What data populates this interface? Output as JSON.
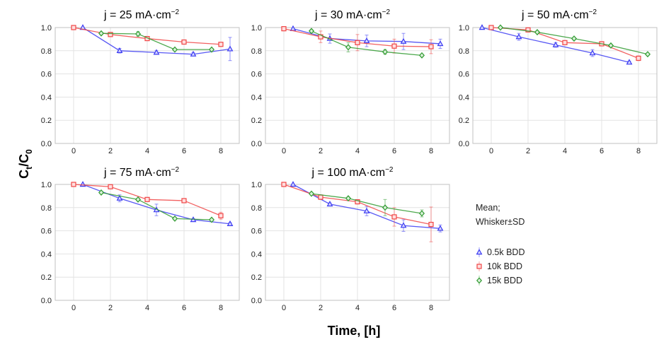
{
  "figure": {
    "ylabel": {
      "main": "C",
      "sub1": "t",
      "slash": "/C",
      "sub2": "0"
    },
    "xlabel": "Time, [h]",
    "legend": {
      "caption_line1": "Mean;",
      "caption_line2": "Whisker±SD",
      "entries": [
        {
          "label": "0.5k BDD",
          "color": "#3b3bf2",
          "marker": "triangle"
        },
        {
          "label": "10k BDD",
          "color": "#f04545",
          "marker": "square"
        },
        {
          "label": "15k BDD",
          "color": "#2f9a2f",
          "marker": "diamond"
        }
      ]
    }
  },
  "chart_data": [
    {
      "type": "line",
      "title": {
        "prefix": "j = 25 mA·cm",
        "sup": "−2"
      },
      "xticks": [
        "0",
        "2",
        "4",
        "6",
        "8"
      ],
      "yticks": [
        "0.0",
        "0.2",
        "0.4",
        "0.6",
        "0.8",
        "1.0"
      ],
      "xlim": [
        -1,
        9
      ],
      "ylim": [
        0,
        1
      ],
      "grid": true,
      "series": [
        {
          "name": "0.5k BDD",
          "color": "#3b3bf2",
          "marker": "triangle",
          "x": [
            0.5,
            2.5,
            4.5,
            6.5,
            8.5
          ],
          "y": [
            1.0,
            0.8,
            0.785,
            0.77,
            0.815
          ],
          "sd": [
            0.0,
            0.02,
            0.015,
            0.015,
            0.1
          ]
        },
        {
          "name": "10k BDD",
          "color": "#f04545",
          "marker": "square",
          "x": [
            0,
            2,
            4,
            6,
            8
          ],
          "y": [
            1.0,
            0.94,
            0.905,
            0.875,
            0.855
          ],
          "sd": [
            0.0,
            0.01,
            0.01,
            0.01,
            0.015
          ]
        },
        {
          "name": "15k BDD",
          "color": "#2f9a2f",
          "marker": "diamond",
          "x": [
            1.5,
            3.5,
            5.5,
            7.5
          ],
          "y": [
            0.95,
            0.945,
            0.81,
            0.81
          ],
          "sd": [
            0.01,
            0.02,
            0.01,
            0.01
          ]
        }
      ]
    },
    {
      "type": "line",
      "title": {
        "prefix": "j = 30 mA·cm",
        "sup": "−2"
      },
      "xticks": [
        "0",
        "2",
        "4",
        "6",
        "8"
      ],
      "yticks": [
        "0.0",
        "0.2",
        "0.4",
        "0.6",
        "0.8",
        "1.0"
      ],
      "xlim": [
        -1,
        9
      ],
      "ylim": [
        0,
        1
      ],
      "grid": true,
      "series": [
        {
          "name": "0.5k BDD",
          "color": "#3b3bf2",
          "marker": "triangle",
          "x": [
            0.5,
            2.5,
            4.5,
            6.5,
            8.5
          ],
          "y": [
            0.99,
            0.905,
            0.885,
            0.88,
            0.86
          ],
          "sd": [
            0.0,
            0.04,
            0.05,
            0.07,
            0.04
          ]
        },
        {
          "name": "10k BDD",
          "color": "#f04545",
          "marker": "square",
          "x": [
            0,
            2,
            4,
            6,
            8
          ],
          "y": [
            0.99,
            0.92,
            0.87,
            0.84,
            0.835
          ],
          "sd": [
            0.0,
            0.05,
            0.07,
            0.06,
            0.06
          ]
        },
        {
          "name": "15k BDD",
          "color": "#2f9a2f",
          "marker": "diamond",
          "x": [
            1.5,
            3.5,
            5.5,
            7.5
          ],
          "y": [
            0.97,
            0.83,
            0.79,
            0.76
          ],
          "sd": [
            0.01,
            0.04,
            0.02,
            0.01
          ]
        }
      ]
    },
    {
      "type": "line",
      "title": {
        "prefix": "j = 50 mA·cm",
        "sup": "−2"
      },
      "xticks": [
        "0",
        "2",
        "4",
        "6",
        "8"
      ],
      "yticks": [
        "0.0",
        "0.2",
        "0.4",
        "0.6",
        "0.8",
        "1.0"
      ],
      "xlim": [
        -1,
        9
      ],
      "ylim": [
        0,
        1
      ],
      "grid": true,
      "series": [
        {
          "name": "0.5k BDD",
          "color": "#3b3bf2",
          "marker": "triangle",
          "x": [
            -0.5,
            1.5,
            3.5,
            5.5,
            7.5
          ],
          "y": [
            1.0,
            0.92,
            0.85,
            0.78,
            0.7
          ],
          "sd": [
            0.0,
            0.03,
            0.02,
            0.03,
            0.01
          ]
        },
        {
          "name": "10k BDD",
          "color": "#f04545",
          "marker": "square",
          "x": [
            0,
            2,
            4,
            6,
            8
          ],
          "y": [
            1.0,
            0.98,
            0.87,
            0.86,
            0.735
          ],
          "sd": [
            0.0,
            0.01,
            0.01,
            0.01,
            0.02
          ]
        },
        {
          "name": "15k BDD",
          "color": "#2f9a2f",
          "marker": "diamond",
          "x": [
            0.5,
            2.5,
            4.5,
            6.5,
            8.5
          ],
          "y": [
            1.0,
            0.96,
            0.905,
            0.845,
            0.77
          ],
          "sd": [
            0.0,
            0.01,
            0.01,
            0.01,
            0.01
          ]
        }
      ]
    },
    {
      "type": "line",
      "title": {
        "prefix": "j = 75 mA·cm",
        "sup": "−2"
      },
      "xticks": [
        "0",
        "2",
        "4",
        "6",
        "8"
      ],
      "yticks": [
        "0.0",
        "0.2",
        "0.4",
        "0.6",
        "0.8",
        "1.0"
      ],
      "xlim": [
        -1,
        9
      ],
      "ylim": [
        0,
        1
      ],
      "grid": true,
      "series": [
        {
          "name": "0.5k BDD",
          "color": "#3b3bf2",
          "marker": "triangle",
          "x": [
            0.5,
            2.5,
            4.5,
            6.5,
            8.5
          ],
          "y": [
            1.0,
            0.88,
            0.78,
            0.695,
            0.66
          ],
          "sd": [
            0.0,
            0.03,
            0.05,
            0.01,
            0.01
          ]
        },
        {
          "name": "10k BDD",
          "color": "#f04545",
          "marker": "square",
          "x": [
            0,
            2,
            4,
            6,
            8
          ],
          "y": [
            1.0,
            0.98,
            0.87,
            0.86,
            0.73
          ],
          "sd": [
            0.0,
            0.01,
            0.01,
            0.01,
            0.03
          ]
        },
        {
          "name": "15k BDD",
          "color": "#2f9a2f",
          "marker": "diamond",
          "x": [
            1.5,
            3.5,
            5.5,
            7.5
          ],
          "y": [
            0.93,
            0.87,
            0.705,
            0.695
          ],
          "sd": [
            0.01,
            0.01,
            0.01,
            0.01
          ]
        }
      ]
    },
    {
      "type": "line",
      "title": {
        "prefix": "j = 100 mA·cm",
        "sup": "−2"
      },
      "xticks": [
        "0",
        "2",
        "4",
        "6",
        "8"
      ],
      "yticks": [
        "0.0",
        "0.2",
        "0.4",
        "0.6",
        "0.8",
        "1.0"
      ],
      "xlim": [
        -1,
        9
      ],
      "ylim": [
        0,
        1
      ],
      "grid": true,
      "series": [
        {
          "name": "0.5k BDD",
          "color": "#3b3bf2",
          "marker": "triangle",
          "x": [
            0.5,
            2.5,
            4.5,
            6.5,
            8.5
          ],
          "y": [
            1.0,
            0.83,
            0.77,
            0.645,
            0.62
          ],
          "sd": [
            0.0,
            0.01,
            0.04,
            0.05,
            0.03
          ]
        },
        {
          "name": "10k BDD",
          "color": "#f04545",
          "marker": "square",
          "x": [
            0,
            2,
            4,
            6,
            8
          ],
          "y": [
            1.0,
            0.89,
            0.85,
            0.72,
            0.655
          ],
          "sd": [
            0.0,
            0.02,
            0.01,
            0.08,
            0.15
          ]
        },
        {
          "name": "15k BDD",
          "color": "#2f9a2f",
          "marker": "diamond",
          "x": [
            1.5,
            3.5,
            5.5,
            7.5
          ],
          "y": [
            0.92,
            0.88,
            0.8,
            0.75
          ],
          "sd": [
            0.01,
            0.01,
            0.07,
            0.03
          ]
        }
      ]
    }
  ]
}
